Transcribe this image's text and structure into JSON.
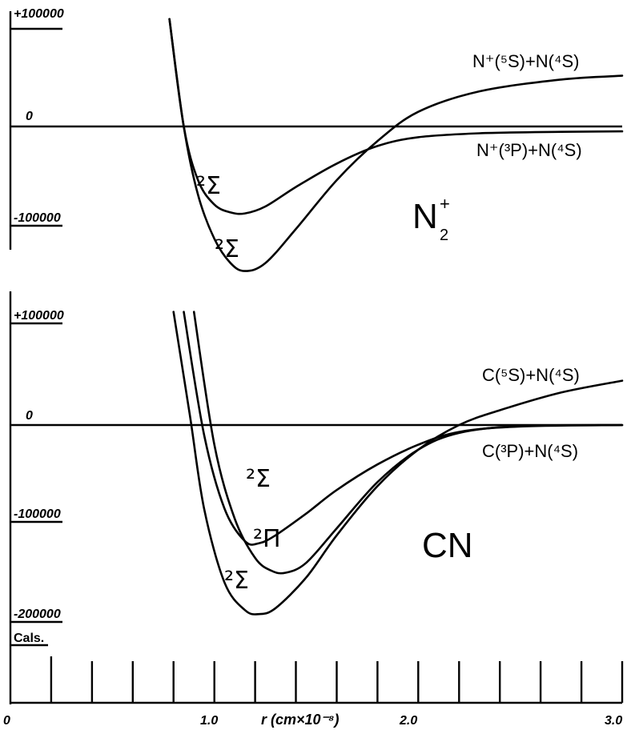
{
  "chart_data": [
    {
      "type": "line",
      "molecule_label": "N",
      "molecule_sub": "2",
      "molecule_sup": "+",
      "y_tick_labels": [
        "+100000",
        "0",
        "-100000"
      ],
      "ylim": [
        -150000,
        130000
      ],
      "xlim": [
        0,
        3.0
      ],
      "asymptotes": [
        {
          "label": "N⁺(⁵S)+N(⁴S)",
          "y": 52000
        },
        {
          "label": "N⁺(³P)+N(⁴S)",
          "y": -5000
        }
      ],
      "series": [
        {
          "term": "²Σ",
          "points": [
            [
              0.78,
              110000
            ],
            [
              0.85,
              0
            ],
            [
              0.92,
              -55000
            ],
            [
              1.0,
              -80000
            ],
            [
              1.08,
              -88000
            ],
            [
              1.15,
              -89000
            ],
            [
              1.25,
              -82000
            ],
            [
              1.4,
              -62000
            ],
            [
              1.6,
              -38000
            ],
            [
              1.8,
              -20000
            ],
            [
              2.0,
              -11000
            ],
            [
              2.3,
              -7000
            ],
            [
              2.7,
              -5500
            ],
            [
              3.0,
              -5000
            ]
          ]
        },
        {
          "term": "²Σ",
          "points": [
            [
              0.78,
              110000
            ],
            [
              0.85,
              0
            ],
            [
              0.92,
              -70000
            ],
            [
              1.0,
              -115000
            ],
            [
              1.08,
              -140000
            ],
            [
              1.15,
              -148000
            ],
            [
              1.25,
              -140000
            ],
            [
              1.4,
              -105000
            ],
            [
              1.6,
              -55000
            ],
            [
              1.8,
              -15000
            ],
            [
              2.0,
              15000
            ],
            [
              2.3,
              36000
            ],
            [
              2.7,
              48000
            ],
            [
              3.0,
              52000
            ]
          ]
        }
      ]
    },
    {
      "type": "line",
      "molecule_label": "CN",
      "y_tick_labels": [
        "+100000",
        "0",
        "-100000",
        "-200000"
      ],
      "ylim": [
        -215000,
        130000
      ],
      "xlim": [
        0,
        3.0
      ],
      "x_tick_labels": [
        "0",
        "1.0",
        "2.0",
        "3.0"
      ],
      "xlabel": "r (cm×10⁻⁸)",
      "units_label": "Cals.",
      "asymptotes": [
        {
          "label": "C(⁵S)+N(⁴S)",
          "y": 45000
        },
        {
          "label": "C(³P)+N(⁴S)",
          "y": 0
        }
      ],
      "series": [
        {
          "term": "²Σ",
          "points": [
            [
              0.85,
              115000
            ],
            [
              0.95,
              -10000
            ],
            [
              1.05,
              -85000
            ],
            [
              1.15,
              -118000
            ],
            [
              1.22,
              -120000
            ],
            [
              1.3,
              -112000
            ],
            [
              1.45,
              -90000
            ],
            [
              1.6,
              -66000
            ],
            [
              1.8,
              -40000
            ],
            [
              2.0,
              -20000
            ],
            [
              2.2,
              -7000
            ],
            [
              2.5,
              -1500
            ],
            [
              3.0,
              0
            ]
          ]
        },
        {
          "term": "²Π",
          "points": [
            [
              0.9,
              115000
            ],
            [
              1.0,
              -20000
            ],
            [
              1.1,
              -95000
            ],
            [
              1.2,
              -135000
            ],
            [
              1.28,
              -148000
            ],
            [
              1.35,
              -150000
            ],
            [
              1.45,
              -140000
            ],
            [
              1.6,
              -105000
            ],
            [
              1.8,
              -58000
            ],
            [
              2.0,
              -25000
            ],
            [
              2.2,
              -8000
            ],
            [
              2.5,
              -1000
            ],
            [
              3.0,
              0
            ]
          ]
        },
        {
          "term": "²Σ",
          "points": [
            [
              0.8,
              115000
            ],
            [
              0.88,
              10000
            ],
            [
              0.95,
              -85000
            ],
            [
              1.05,
              -160000
            ],
            [
              1.15,
              -188000
            ],
            [
              1.22,
              -192000
            ],
            [
              1.3,
              -186000
            ],
            [
              1.45,
              -155000
            ],
            [
              1.6,
              -112000
            ],
            [
              1.8,
              -62000
            ],
            [
              2.0,
              -25000
            ],
            [
              2.2,
              0
            ],
            [
              2.4,
              15000
            ],
            [
              2.7,
              33000
            ],
            [
              3.0,
              45000
            ]
          ]
        }
      ]
    }
  ]
}
